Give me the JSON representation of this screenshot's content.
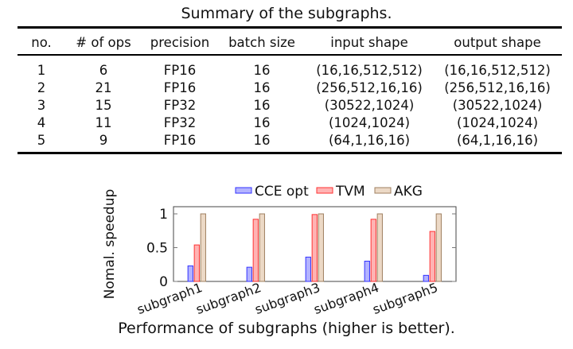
{
  "table": {
    "caption": "Summary of the subgraphs.",
    "columns": [
      "no.",
      "# of ops",
      "precision",
      "batch size",
      "input shape",
      "output shape"
    ],
    "rows": [
      [
        "1",
        "6",
        "FP16",
        "16",
        "(16,16,512,512)",
        "(16,16,512,512)"
      ],
      [
        "2",
        "21",
        "FP16",
        "16",
        "(256,512,16,16)",
        "(256,512,16,16)"
      ],
      [
        "3",
        "15",
        "FP32",
        "16",
        "(30522,1024)",
        "(30522,1024)"
      ],
      [
        "4",
        "11",
        "FP32",
        "16",
        "(1024,1024)",
        "(1024,1024)"
      ],
      [
        "5",
        "9",
        "FP16",
        "16",
        "(64,1,16,16)",
        "(64,1,16,16)"
      ]
    ]
  },
  "chart_data": {
    "type": "bar",
    "title": "Performance of subgraphs (higher is better).",
    "xlabel": "",
    "ylabel": "Nomal. speedup",
    "categories": [
      "subgraph1",
      "subgraph2",
      "subgraph3",
      "subgraph4",
      "subgraph5"
    ],
    "series": [
      {
        "name": "CCE opt",
        "values": [
          0.23,
          0.21,
          0.36,
          0.3,
          0.09
        ],
        "fill": "#b3b3ff",
        "stroke": "#3333ff"
      },
      {
        "name": "TVM",
        "values": [
          0.54,
          0.92,
          0.99,
          0.92,
          0.74
        ],
        "fill": "#ffb3b3",
        "stroke": "#ff3333"
      },
      {
        "name": "AKG",
        "values": [
          1.0,
          1.0,
          1.0,
          1.0,
          1.0
        ],
        "fill": "#ecd9c6",
        "stroke": "#9f8060"
      }
    ],
    "ylim": [
      0,
      1.1
    ],
    "yticks": [
      0,
      0.5,
      1
    ],
    "ytick_labels": [
      "0",
      "0.5",
      "1"
    ],
    "legend": "top-center",
    "grid": false
  }
}
